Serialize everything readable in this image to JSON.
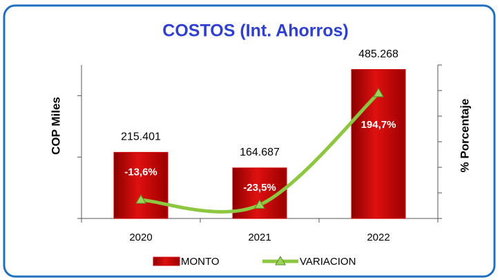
{
  "chart_data": {
    "type": "bar",
    "title": "COSTOS (Int. Ahorros)",
    "y_label": "COP Miles",
    "y2_label": "% Porcentaje",
    "categories": [
      "2020",
      "2021",
      "2022"
    ],
    "series": [
      {
        "name": "MONTO",
        "type": "bar",
        "color": "#cc0000",
        "values": [
          215.401,
          164.687,
          485.268
        ],
        "value_labels": [
          "215.401",
          "164.687",
          "485.268"
        ]
      },
      {
        "name": "VARIACION",
        "type": "line",
        "axis": "y2",
        "color": "#8dc63f",
        "values": [
          -13.6,
          -23.5,
          194.7
        ],
        "value_labels": [
          "-13,6%",
          "-23,5%",
          "194,7%"
        ]
      }
    ],
    "ylim": [
      0,
      500
    ],
    "yticks": [
      0,
      200,
      400
    ],
    "y2lim": [
      -50,
      250
    ],
    "y2ticks": [
      -50,
      0,
      50,
      100,
      150,
      200,
      250
    ]
  }
}
